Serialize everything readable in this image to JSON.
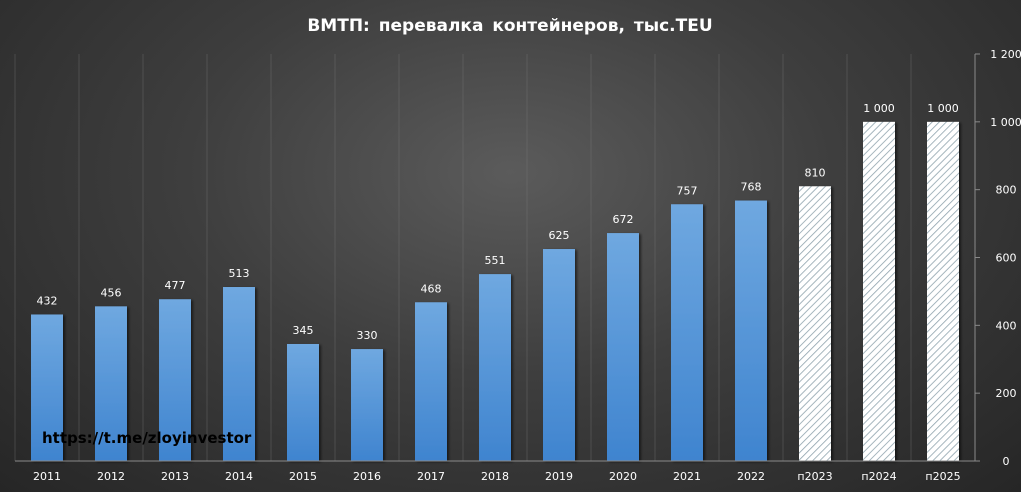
{
  "chart_data": {
    "type": "bar",
    "title": "ВМТП: перевалка контейнеров, тыс.TEU",
    "categories": [
      "2011",
      "2012",
      "2013",
      "2014",
      "2015",
      "2016",
      "2017",
      "2018",
      "2019",
      "2020",
      "2021",
      "2022",
      "п2023",
      "п2024",
      "п2025"
    ],
    "values": [
      432,
      456,
      477,
      513,
      345,
      330,
      468,
      551,
      625,
      672,
      757,
      768,
      810,
      1000,
      1000
    ],
    "value_labels": [
      "432",
      "456",
      "477",
      "513",
      "345",
      "330",
      "468",
      "551",
      "625",
      "672",
      "757",
      "768",
      "810",
      "1 000",
      "1 000"
    ],
    "forecast": [
      false,
      false,
      false,
      false,
      false,
      false,
      false,
      false,
      false,
      false,
      false,
      false,
      true,
      true,
      true
    ],
    "ylim": [
      0,
      1200
    ],
    "y_ticks": [
      0,
      200,
      400,
      600,
      800,
      1000,
      1200
    ],
    "y_tick_labels": [
      "0",
      "200",
      "400",
      "600",
      "800",
      "1 000",
      "1 200"
    ],
    "y_axis_side": "right",
    "xlabel": "",
    "ylabel": "",
    "grid": "vertical category separators",
    "legend": "none",
    "colors": {
      "actual_bar_top": "#6fa8e0",
      "actual_bar_bottom": "#3f84cf",
      "forecast_hatch": "#dfe6ea",
      "forecast_fill": "#ffffff",
      "text": "#ffffff",
      "axis": "#8a8a8a"
    }
  },
  "watermark": "https://t.me/zloyinvestor"
}
